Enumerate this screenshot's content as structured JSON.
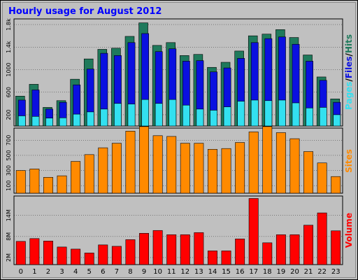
{
  "chart_data": [
    {
      "type": "bar",
      "title": "Hourly usage for August 2012",
      "categories": [
        "0",
        "1",
        "2",
        "3",
        "4",
        "5",
        "6",
        "7",
        "8",
        "9",
        "10",
        "11",
        "12",
        "13",
        "14",
        "15",
        "16",
        "17",
        "18",
        "19",
        "20",
        "21",
        "22",
        "23"
      ],
      "ylabel_parts": [
        "Pages",
        "/",
        "Files",
        "/",
        "Hits"
      ],
      "yticks": [
        "200",
        "600",
        "1000",
        "1.4k",
        "1.8k"
      ],
      "ytick_values": [
        200,
        600,
        1000,
        1400,
        1800
      ],
      "ylim": [
        0,
        1900
      ],
      "series": [
        {
          "name": "Hits",
          "color": "#1f7a5c",
          "values": [
            530,
            740,
            330,
            450,
            830,
            1190,
            1360,
            1380,
            1590,
            1830,
            1430,
            1480,
            1250,
            1270,
            1040,
            1130,
            1330,
            1600,
            1630,
            1710,
            1570,
            1260,
            870,
            480
          ]
        },
        {
          "name": "Files",
          "color": "#0a10e0",
          "values": [
            460,
            640,
            300,
            420,
            730,
            1010,
            1290,
            1250,
            1480,
            1640,
            1320,
            1370,
            1150,
            1160,
            960,
            1030,
            1200,
            1480,
            1550,
            1580,
            1450,
            1150,
            810,
            420
          ]
        },
        {
          "name": "Pages",
          "color": "#33e0f0",
          "values": [
            180,
            170,
            140,
            145,
            210,
            250,
            300,
            400,
            390,
            470,
            400,
            470,
            370,
            300,
            280,
            340,
            440,
            460,
            450,
            460,
            410,
            320,
            330,
            200
          ]
        }
      ]
    },
    {
      "type": "bar",
      "categories": [
        "0",
        "1",
        "2",
        "3",
        "4",
        "5",
        "6",
        "7",
        "8",
        "9",
        "10",
        "11",
        "12",
        "13",
        "14",
        "15",
        "16",
        "17",
        "18",
        "19",
        "20",
        "21",
        "22",
        "23"
      ],
      "ylabel_parts": [
        "Sites"
      ],
      "yticks": [
        "100",
        "300",
        "500",
        "700"
      ],
      "ytick_values": [
        100,
        300,
        500,
        700
      ],
      "ylim": [
        0,
        860
      ],
      "series": [
        {
          "name": "Sites",
          "color": "#ff8a00",
          "values": [
            300,
            320,
            210,
            230,
            420,
            510,
            600,
            660,
            820,
            880,
            760,
            750,
            660,
            660,
            580,
            590,
            670,
            810,
            880,
            800,
            720,
            550,
            400,
            220
          ]
        }
      ]
    },
    {
      "type": "bar",
      "categories": [
        "0",
        "1",
        "2",
        "3",
        "4",
        "5",
        "6",
        "7",
        "8",
        "9",
        "10",
        "11",
        "12",
        "13",
        "14",
        "15",
        "16",
        "17",
        "18",
        "19",
        "20",
        "21",
        "22",
        "23"
      ],
      "ylabel_parts": [
        "Volume"
      ],
      "yticks": [
        "2M",
        "8M",
        "14M"
      ],
      "ytick_values": [
        2,
        8,
        14
      ],
      "ylim": [
        0,
        19.5
      ],
      "series": [
        {
          "name": "Volume",
          "color": "#ff0000",
          "values": [
            6.6,
            7.4,
            6.7,
            5.0,
            4.4,
            3.3,
            5.6,
            5.2,
            7.1,
            8.9,
            9.7,
            8.5,
            8.5,
            9.1,
            3.9,
            3.9,
            7.3,
            18.8,
            6.2,
            8.5,
            8.5,
            11.2,
            14.7,
            9.6
          ]
        }
      ]
    }
  ]
}
